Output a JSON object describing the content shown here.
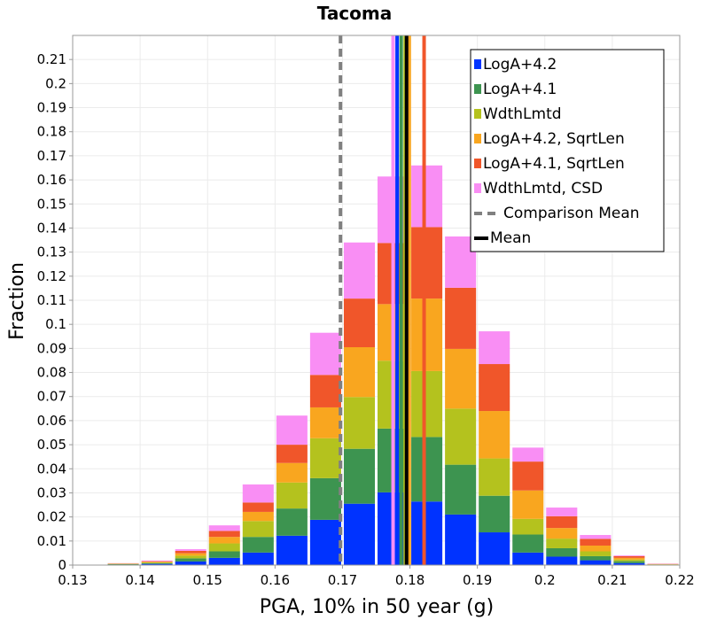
{
  "chart_data": {
    "type": "bar",
    "stacked": true,
    "title": "Tacoma",
    "xlabel": "PGA, 10% in 50 year (g)",
    "ylabel": "Fraction",
    "xlim": [
      0.13,
      0.22
    ],
    "ylim": [
      0,
      0.22
    ],
    "x_ticks": [
      "0.13",
      "0.14",
      "0.15",
      "0.16",
      "0.17",
      "0.18",
      "0.19",
      "0.2",
      "0.21",
      "0.22"
    ],
    "y_ticks": [
      "0",
      "0.01",
      "0.02",
      "0.03",
      "0.04",
      "0.05",
      "0.06",
      "0.07",
      "0.08",
      "0.09",
      "0.1",
      "0.11",
      "0.12",
      "0.13",
      "0.14",
      "0.15",
      "0.16",
      "0.17",
      "0.18",
      "0.19",
      "0.2",
      "0.21"
    ],
    "grid": true,
    "legend_position": "top-right",
    "bin_width": 0.005,
    "bin_centers": [
      0.1375,
      0.1425,
      0.1475,
      0.1525,
      0.1575,
      0.1625,
      0.1675,
      0.1725,
      0.1775,
      0.1825,
      0.1875,
      0.1925,
      0.1975,
      0.2025,
      0.2075,
      0.2125,
      0.2175
    ],
    "series": [
      {
        "name": "LogA+4.2",
        "color": "#0033ff",
        "values": [
          0.0002,
          0.0005,
          0.0015,
          0.003,
          0.0052,
          0.0122,
          0.0188,
          0.0255,
          0.0302,
          0.0264,
          0.021,
          0.0136,
          0.0052,
          0.0035,
          0.002,
          0.0008,
          0.0001
        ]
      },
      {
        "name": "LogA+4.1",
        "color": "#3d9450",
        "values": [
          0.0002,
          0.0003,
          0.0013,
          0.0027,
          0.0065,
          0.0113,
          0.0173,
          0.0228,
          0.0265,
          0.0268,
          0.0207,
          0.0152,
          0.0075,
          0.0035,
          0.0017,
          0.0008,
          0.0001
        ]
      },
      {
        "name": "WdthLmtd",
        "color": "#b4c21e",
        "values": [
          0.0001,
          0.0003,
          0.0011,
          0.0033,
          0.0066,
          0.0108,
          0.0166,
          0.0215,
          0.0282,
          0.0274,
          0.0233,
          0.0155,
          0.0065,
          0.004,
          0.002,
          0.0007,
          0.0001
        ]
      },
      {
        "name": "LogA+4.2, SqrtLen",
        "color": "#f9a61f",
        "values": [
          0.0001,
          0.0003,
          0.001,
          0.0027,
          0.0038,
          0.0081,
          0.0128,
          0.0207,
          0.0235,
          0.0301,
          0.0248,
          0.0197,
          0.0118,
          0.0044,
          0.0024,
          0.0007,
          0.0001
        ]
      },
      {
        "name": "LogA+4.1, SqrtLen",
        "color": "#f0562a",
        "values": [
          0.0001,
          0.0002,
          0.001,
          0.0025,
          0.0039,
          0.0076,
          0.0135,
          0.0202,
          0.0254,
          0.0297,
          0.0254,
          0.0195,
          0.012,
          0.0049,
          0.0028,
          0.0007,
          0.0001
        ]
      },
      {
        "name": "WdthLmtd, CSD",
        "color": "#f98ef4",
        "values": [
          0.0001,
          0.0003,
          0.0007,
          0.0023,
          0.0075,
          0.0121,
          0.0175,
          0.0233,
          0.0276,
          0.0256,
          0.0213,
          0.0136,
          0.0058,
          0.0036,
          0.0016,
          0.0003,
          0.0001
        ]
      }
    ],
    "mean_lines": [
      {
        "series": "WdthLmtd, CSD",
        "x": 0.1775,
        "color": "#f98ef4"
      },
      {
        "series": "LogA+4.2",
        "x": 0.1781,
        "color": "#0033ff"
      },
      {
        "series": "LogA+4.1",
        "x": 0.1787,
        "color": "#3d9450"
      },
      {
        "series": "WdthLmtd",
        "x": 0.1793,
        "color": "#b4c21e"
      },
      {
        "series": "LogA+4.2, SqrtLen",
        "x": 0.1799,
        "color": "#f9a61f"
      },
      {
        "series": "LogA+4.1, SqrtLen",
        "x": 0.1821,
        "color": "#f0562a"
      }
    ],
    "comparison_mean": {
      "label": "Comparison Mean",
      "x": 0.1697,
      "color": "#808080"
    },
    "overall_mean": {
      "label": "Mean",
      "x": 0.1795,
      "color": "#000000"
    }
  }
}
